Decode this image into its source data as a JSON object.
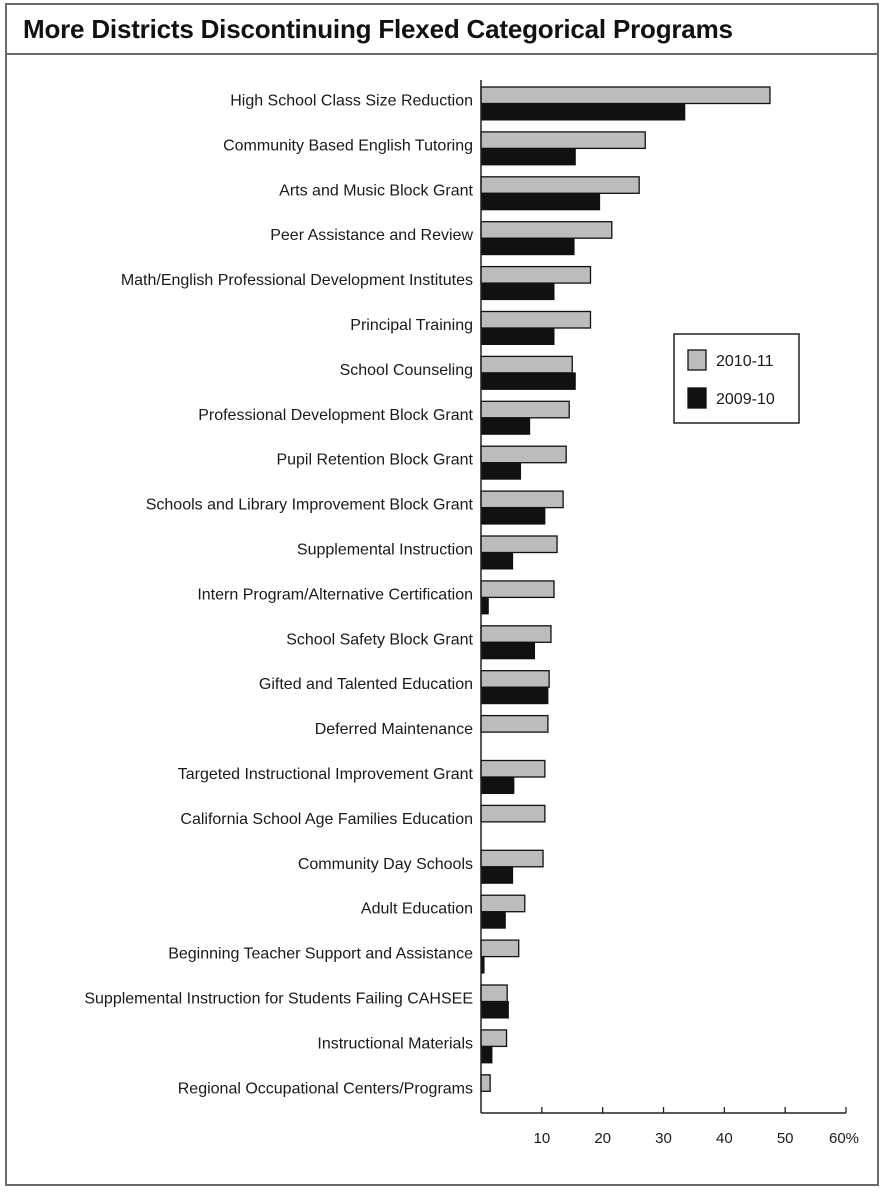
{
  "chart_data": {
    "type": "bar",
    "orientation": "horizontal",
    "title": "More Districts Discontinuing Flexed Categorical Programs",
    "categories": [
      "High School Class Size Reduction",
      "Community Based English Tutoring",
      "Arts and Music Block Grant",
      "Peer Assistance and Review",
      "Math/English Professional Development Institutes",
      "Principal Training",
      "School Counseling",
      "Professional Development Block Grant",
      "Pupil Retention Block Grant",
      "Schools and Library Improvement Block Grant",
      "Supplemental Instruction",
      "Intern Program/Alternative Certification",
      "School Safety Block Grant",
      "Gifted and Talented Education",
      "Deferred Maintenance",
      "Targeted Instructional Improvement Grant",
      "California School Age Families Education",
      "Community Day Schools",
      "Adult Education",
      "Beginning Teacher Support and Assistance",
      "Supplemental Instruction for Students Failing CAHSEE",
      "Instructional Materials",
      "Regional Occupational Centers/Programs"
    ],
    "series": [
      {
        "name": "2010-11",
        "color": "#bcbcbc",
        "values": [
          47.5,
          27,
          26,
          21.5,
          18,
          18,
          15,
          14.5,
          14,
          13.5,
          12.5,
          12,
          11.5,
          11.2,
          11,
          10.5,
          10.5,
          10.2,
          7.2,
          6.2,
          4.3,
          4.2,
          1.5
        ]
      },
      {
        "name": "2009-10",
        "color": "#111111",
        "values": [
          33.5,
          15.5,
          19.5,
          15.3,
          12,
          12,
          15.5,
          8,
          6.5,
          10.5,
          5.2,
          1.2,
          8.8,
          11,
          0,
          5.4,
          0,
          5.2,
          4,
          0.5,
          4.5,
          1.8,
          0
        ]
      }
    ],
    "xlim": [
      0,
      60
    ],
    "xticks": [
      10,
      20,
      30,
      40,
      50,
      60
    ],
    "xtick_labels": [
      "10",
      "20",
      "30",
      "40",
      "50",
      "60%"
    ],
    "legend_position": "right"
  }
}
